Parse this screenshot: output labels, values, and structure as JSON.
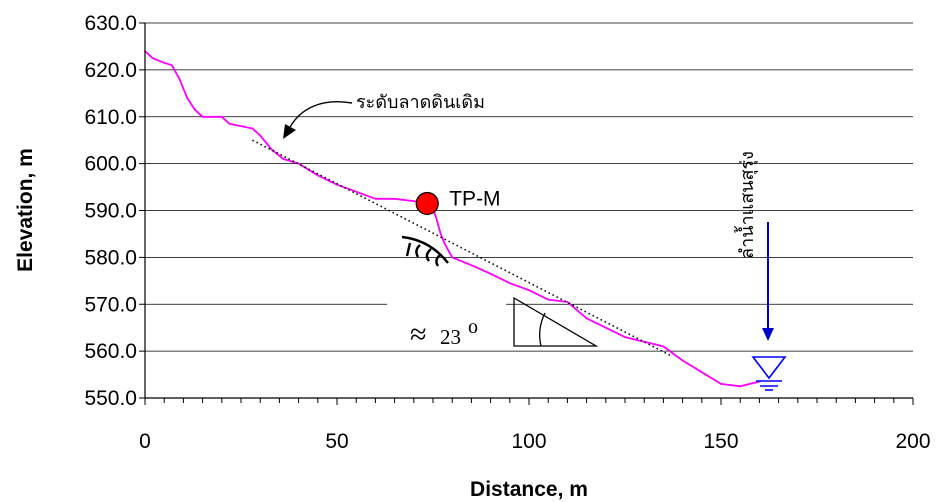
{
  "chart_data": {
    "type": "line",
    "xlabel": "Distance, m",
    "ylabel": "Elevation, m",
    "xlim": [
      0,
      200
    ],
    "ylim": [
      550,
      630
    ],
    "x_ticks": [
      "0",
      "50",
      "100",
      "150",
      "200"
    ],
    "y_ticks": [
      "550.0",
      "560.0",
      "570.0",
      "580.0",
      "590.0",
      "600.0",
      "610.0",
      "620.0",
      "630.0"
    ],
    "grid": "horizontal",
    "series": [
      {
        "style": "solid",
        "color": "#ff00ff",
        "x": [
          0,
          2,
          5,
          7,
          9,
          11,
          13,
          15,
          17,
          20,
          22,
          25,
          28,
          30,
          33,
          36,
          40,
          45,
          50,
          55,
          60,
          65,
          70,
          73,
          75,
          76,
          77,
          78,
          80,
          83,
          86,
          90,
          95,
          100,
          105,
          110,
          115,
          120,
          125,
          130,
          135,
          140,
          145,
          150,
          155,
          160
        ],
        "y": [
          624,
          622.5,
          621.5,
          621,
          618,
          614,
          611.5,
          610,
          610,
          610,
          608.5,
          608,
          607.5,
          606,
          603,
          601,
          600,
          597.5,
          595.5,
          594,
          592.5,
          592.5,
          592,
          591.5,
          590.5,
          588,
          585,
          583,
          580,
          579,
          578,
          576.5,
          574.5,
          573,
          571,
          570.5,
          567,
          565,
          563,
          562,
          561,
          558,
          555.5,
          553,
          552.5,
          553.5
        ]
      },
      {
        "style": "dotted",
        "color": "#000000",
        "x": [
          28,
          137
        ],
        "y": [
          605,
          559
        ]
      }
    ],
    "markers": [
      {
        "label": "TP-M",
        "x": 73.5,
        "y": 591.5,
        "color": "#ff0000"
      }
    ],
    "annotations": {
      "original_ground": "ระดับลาดดินเดิม",
      "angle": "≈",
      "angle_value": "23",
      "angle_unit": "o",
      "stream": "ลำน้ำแสนสุรุ่ง"
    },
    "colors": {
      "profile": "#ff00ff",
      "marker": "#ff0000",
      "arrow": "#0000cc",
      "water": "#0000ff"
    }
  }
}
